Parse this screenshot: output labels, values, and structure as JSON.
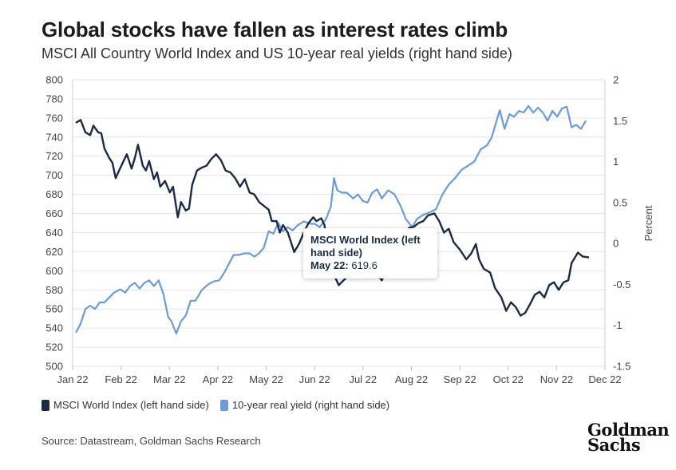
{
  "header": {
    "title": "Global stocks have fallen as interest rates climb",
    "subtitle": "MSCI All Country World Index and US 10-year real yields (right hand side)"
  },
  "tooltip": {
    "series": "MSCI World Index (left hand side)",
    "date": "May 22:",
    "value": "619.6"
  },
  "source": "Source: Datastream, Goldman Sachs Research",
  "logo": {
    "line1": "Goldman",
    "line2": "Sachs"
  },
  "colors": {
    "msci": "#1b2a45",
    "yield": "#6b9bd8",
    "grid": "#e6e6e6"
  },
  "chart_data": {
    "type": "line",
    "x_ticks": [
      "Jan 22",
      "Feb 22",
      "Mar 22",
      "Apr 22",
      "May 22",
      "Jun 22",
      "Jul 22",
      "Aug 22",
      "Sep 22",
      "Oct 22",
      "Nov 22",
      "Dec 22"
    ],
    "ylim_left": [
      500,
      800
    ],
    "yticks_left": [
      500,
      520,
      540,
      560,
      580,
      600,
      620,
      640,
      660,
      680,
      700,
      720,
      740,
      760,
      780,
      800
    ],
    "ylim_right": [
      -1.5,
      2
    ],
    "yticks_right": [
      "-1.5",
      "-1",
      "-0.5",
      "0",
      "0.5",
      "1",
      "1.5",
      "2"
    ],
    "ylabel_right": "Percent",
    "grid": true,
    "legend": "bottom-left",
    "series": [
      {
        "name": "MSCI World Index (left hand side)",
        "axis": "left",
        "points": [
          [
            "2022-01-03",
            755
          ],
          [
            "2022-01-06",
            758
          ],
          [
            "2022-01-09",
            745
          ],
          [
            "2022-01-12",
            742
          ],
          [
            "2022-01-14",
            752
          ],
          [
            "2022-01-17",
            745
          ],
          [
            "2022-01-19",
            744
          ],
          [
            "2022-01-21",
            728
          ],
          [
            "2022-01-24",
            718
          ],
          [
            "2022-01-26",
            713
          ],
          [
            "2022-01-28",
            697
          ],
          [
            "2022-01-31",
            708
          ],
          [
            "2022-02-02",
            715
          ],
          [
            "2022-02-04",
            722
          ],
          [
            "2022-02-07",
            707
          ],
          [
            "2022-02-09",
            718
          ],
          [
            "2022-02-11",
            732
          ],
          [
            "2022-02-14",
            710
          ],
          [
            "2022-02-16",
            705
          ],
          [
            "2022-02-18",
            715
          ],
          [
            "2022-02-21",
            696
          ],
          [
            "2022-02-23",
            703
          ],
          [
            "2022-02-25",
            688
          ],
          [
            "2022-02-28",
            694
          ],
          [
            "2022-03-03",
            682
          ],
          [
            "2022-03-05",
            688
          ],
          [
            "2022-03-08",
            656
          ],
          [
            "2022-03-10",
            672
          ],
          [
            "2022-03-13",
            663
          ],
          [
            "2022-03-15",
            665
          ],
          [
            "2022-03-17",
            690
          ],
          [
            "2022-03-20",
            705
          ],
          [
            "2022-03-23",
            708
          ],
          [
            "2022-03-26",
            710
          ],
          [
            "2022-03-29",
            717
          ],
          [
            "2022-04-01",
            722
          ],
          [
            "2022-04-04",
            716
          ],
          [
            "2022-04-07",
            705
          ],
          [
            "2022-04-10",
            703
          ],
          [
            "2022-04-13",
            697
          ],
          [
            "2022-04-16",
            688
          ],
          [
            "2022-04-19",
            696
          ],
          [
            "2022-04-22",
            682
          ],
          [
            "2022-04-25",
            680
          ],
          [
            "2022-04-28",
            672
          ],
          [
            "2022-05-01",
            668
          ],
          [
            "2022-05-04",
            664
          ],
          [
            "2022-05-06",
            652
          ],
          [
            "2022-05-09",
            652
          ],
          [
            "2022-05-11",
            640
          ],
          [
            "2022-05-13",
            648
          ],
          [
            "2022-05-16",
            640
          ],
          [
            "2022-05-18",
            630
          ],
          [
            "2022-05-20",
            619.6
          ],
          [
            "2022-05-23",
            628
          ],
          [
            "2022-05-26",
            640
          ],
          [
            "2022-05-29",
            650
          ],
          [
            "2022-06-01",
            656
          ],
          [
            "2022-06-03",
            652
          ],
          [
            "2022-06-06",
            655
          ],
          [
            "2022-06-08",
            648
          ],
          [
            "2022-06-10",
            625
          ],
          [
            "2022-06-13",
            604
          ],
          [
            "2022-06-15",
            592
          ],
          [
            "2022-06-17",
            585
          ],
          [
            "2022-06-20",
            590
          ],
          [
            "2022-06-23",
            595
          ],
          [
            "2022-06-27",
            604
          ],
          [
            "2022-06-30",
            596
          ],
          [
            "2022-07-04",
            598
          ],
          [
            "2022-07-06",
            602
          ],
          [
            "2022-07-08",
            602
          ],
          [
            "2022-07-11",
            596
          ],
          [
            "2022-07-14",
            590
          ],
          [
            "2022-07-18",
            604
          ],
          [
            "2022-07-21",
            618
          ],
          [
            "2022-07-25",
            624
          ],
          [
            "2022-07-28",
            636
          ],
          [
            "2022-07-31",
            645
          ],
          [
            "2022-08-03",
            646
          ],
          [
            "2022-08-06",
            650
          ],
          [
            "2022-08-09",
            652
          ],
          [
            "2022-08-12",
            658
          ],
          [
            "2022-08-16",
            660
          ],
          [
            "2022-08-19",
            652
          ],
          [
            "2022-08-22",
            640
          ],
          [
            "2022-08-25",
            644
          ],
          [
            "2022-08-28",
            630
          ],
          [
            "2022-09-01",
            622
          ],
          [
            "2022-09-05",
            612
          ],
          [
            "2022-09-08",
            618
          ],
          [
            "2022-09-11",
            628
          ],
          [
            "2022-09-13",
            612
          ],
          [
            "2022-09-16",
            602
          ],
          [
            "2022-09-20",
            598
          ],
          [
            "2022-09-23",
            582
          ],
          [
            "2022-09-27",
            572
          ],
          [
            "2022-09-30",
            558
          ],
          [
            "2022-10-03",
            567
          ],
          [
            "2022-10-06",
            562
          ],
          [
            "2022-10-09",
            553
          ],
          [
            "2022-10-12",
            556
          ],
          [
            "2022-10-15",
            565
          ],
          [
            "2022-10-18",
            575
          ],
          [
            "2022-10-21",
            578
          ],
          [
            "2022-10-24",
            572
          ],
          [
            "2022-10-27",
            585
          ],
          [
            "2022-10-30",
            588
          ],
          [
            "2022-11-02",
            580
          ],
          [
            "2022-11-05",
            588
          ],
          [
            "2022-11-08",
            590
          ],
          [
            "2022-11-10",
            608
          ],
          [
            "2022-11-14",
            619
          ],
          [
            "2022-11-17",
            615
          ],
          [
            "2022-11-21",
            614
          ]
        ]
      },
      {
        "name": "10-year real yield (right hand side)",
        "axis": "right",
        "points": [
          [
            "2022-01-03",
            -1.09
          ],
          [
            "2022-01-06",
            -0.98
          ],
          [
            "2022-01-09",
            -0.8
          ],
          [
            "2022-01-12",
            -0.76
          ],
          [
            "2022-01-15",
            -0.8
          ],
          [
            "2022-01-18",
            -0.72
          ],
          [
            "2022-01-21",
            -0.72
          ],
          [
            "2022-01-24",
            -0.66
          ],
          [
            "2022-01-27",
            -0.6
          ],
          [
            "2022-01-31",
            -0.56
          ],
          [
            "2022-02-03",
            -0.6
          ],
          [
            "2022-02-06",
            -0.52
          ],
          [
            "2022-02-09",
            -0.48
          ],
          [
            "2022-02-12",
            -0.55
          ],
          [
            "2022-02-15",
            -0.48
          ],
          [
            "2022-02-18",
            -0.45
          ],
          [
            "2022-02-21",
            -0.52
          ],
          [
            "2022-02-24",
            -0.45
          ],
          [
            "2022-02-27",
            -0.62
          ],
          [
            "2022-03-02",
            -0.9
          ],
          [
            "2022-03-04",
            -0.95
          ],
          [
            "2022-03-07",
            -1.1
          ],
          [
            "2022-03-10",
            -0.95
          ],
          [
            "2022-03-13",
            -0.88
          ],
          [
            "2022-03-16",
            -0.7
          ],
          [
            "2022-03-19",
            -0.7
          ],
          [
            "2022-03-23",
            -0.57
          ],
          [
            "2022-03-27",
            -0.5
          ],
          [
            "2022-03-31",
            -0.46
          ],
          [
            "2022-04-03",
            -0.45
          ],
          [
            "2022-04-06",
            -0.36
          ],
          [
            "2022-04-09",
            -0.25
          ],
          [
            "2022-04-12",
            -0.14
          ],
          [
            "2022-04-15",
            -0.14
          ],
          [
            "2022-04-19",
            -0.12
          ],
          [
            "2022-04-22",
            -0.12
          ],
          [
            "2022-04-25",
            -0.16
          ],
          [
            "2022-04-28",
            -0.12
          ],
          [
            "2022-05-01",
            -0.05
          ],
          [
            "2022-05-04",
            0.15
          ],
          [
            "2022-05-07",
            0.12
          ],
          [
            "2022-05-10",
            0.25
          ],
          [
            "2022-05-13",
            0.15
          ],
          [
            "2022-05-16",
            0.2
          ],
          [
            "2022-05-19",
            0.16
          ],
          [
            "2022-05-22",
            0.22
          ],
          [
            "2022-05-26",
            0.27
          ],
          [
            "2022-05-30",
            0.24
          ],
          [
            "2022-06-02",
            0.24
          ],
          [
            "2022-06-05",
            0.2
          ],
          [
            "2022-06-09",
            0.3
          ],
          [
            "2022-06-12",
            0.45
          ],
          [
            "2022-06-14",
            0.8
          ],
          [
            "2022-06-16",
            0.65
          ],
          [
            "2022-06-19",
            0.62
          ],
          [
            "2022-06-22",
            0.62
          ],
          [
            "2022-06-26",
            0.55
          ],
          [
            "2022-06-29",
            0.6
          ],
          [
            "2022-07-02",
            0.52
          ],
          [
            "2022-07-05",
            0.5
          ],
          [
            "2022-07-08",
            0.62
          ],
          [
            "2022-07-11",
            0.66
          ],
          [
            "2022-07-14",
            0.55
          ],
          [
            "2022-07-18",
            0.65
          ],
          [
            "2022-07-22",
            0.6
          ],
          [
            "2022-07-26",
            0.45
          ],
          [
            "2022-07-29",
            0.3
          ],
          [
            "2022-08-02",
            0.2
          ],
          [
            "2022-08-05",
            0.3
          ],
          [
            "2022-08-09",
            0.35
          ],
          [
            "2022-08-13",
            0.38
          ],
          [
            "2022-08-17",
            0.42
          ],
          [
            "2022-08-21",
            0.6
          ],
          [
            "2022-08-25",
            0.72
          ],
          [
            "2022-08-29",
            0.8
          ],
          [
            "2022-09-02",
            0.9
          ],
          [
            "2022-09-06",
            0.95
          ],
          [
            "2022-09-10",
            1.0
          ],
          [
            "2022-09-14",
            1.15
          ],
          [
            "2022-09-18",
            1.2
          ],
          [
            "2022-09-21",
            1.3
          ],
          [
            "2022-09-24",
            1.5
          ],
          [
            "2022-09-26",
            1.63
          ],
          [
            "2022-09-29",
            1.4
          ],
          [
            "2022-10-02",
            1.58
          ],
          [
            "2022-10-05",
            1.55
          ],
          [
            "2022-10-08",
            1.62
          ],
          [
            "2022-10-11",
            1.6
          ],
          [
            "2022-10-14",
            1.68
          ],
          [
            "2022-10-17",
            1.6
          ],
          [
            "2022-10-20",
            1.66
          ],
          [
            "2022-10-23",
            1.6
          ],
          [
            "2022-10-26",
            1.5
          ],
          [
            "2022-10-29",
            1.62
          ],
          [
            "2022-11-01",
            1.55
          ],
          [
            "2022-11-04",
            1.65
          ],
          [
            "2022-11-07",
            1.67
          ],
          [
            "2022-11-10",
            1.42
          ],
          [
            "2022-11-13",
            1.45
          ],
          [
            "2022-11-16",
            1.4
          ],
          [
            "2022-11-19",
            1.5
          ]
        ]
      }
    ]
  }
}
